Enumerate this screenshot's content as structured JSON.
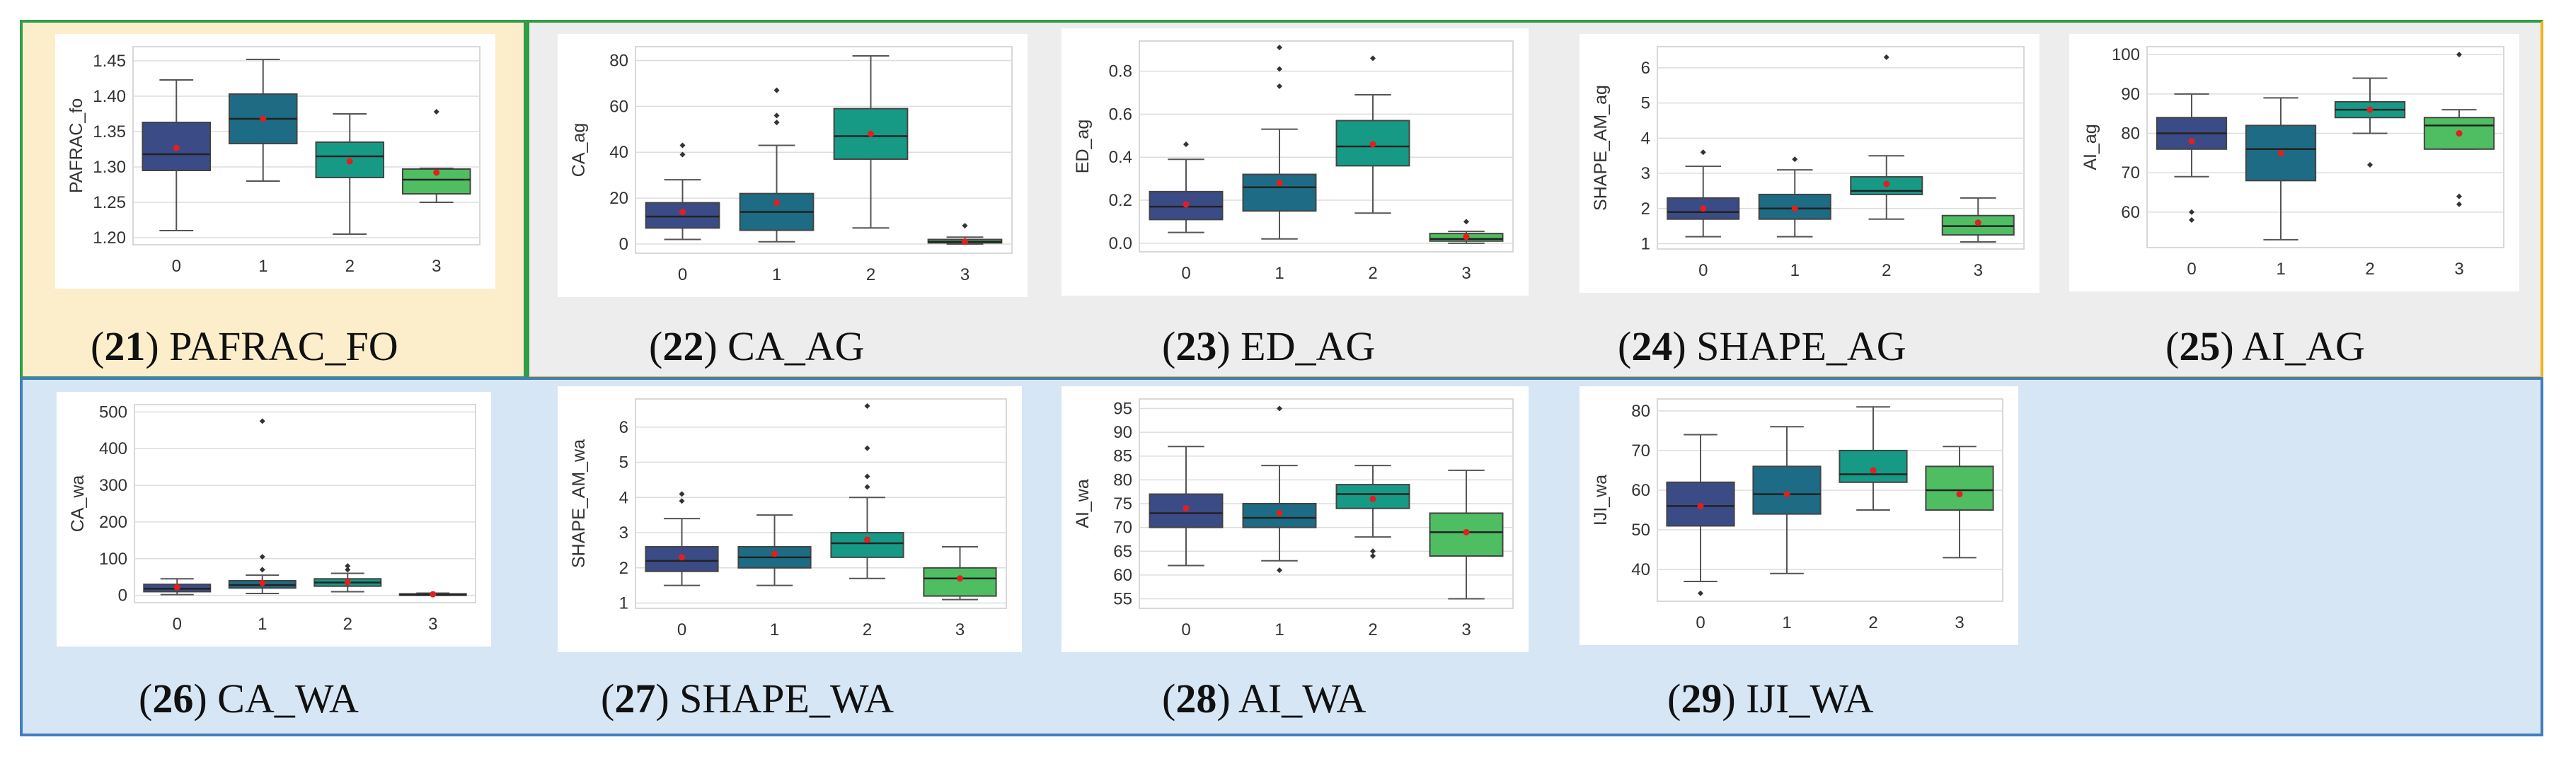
{
  "chart_data": [
    {
      "id": "21",
      "type": "box",
      "caption_num": "21",
      "caption_text": "PAFRAC_FO",
      "ylabel": "PAFRAC_fo",
      "categories": [
        "0",
        "1",
        "2",
        "3"
      ],
      "yticks": [
        1.2,
        1.25,
        1.3,
        1.35,
        1.4,
        1.45
      ],
      "yticklabels": [
        "1.20",
        "1.25",
        "1.30",
        "1.35",
        "1.40",
        "1.45"
      ],
      "ylim": [
        1.19,
        1.47
      ],
      "boxes": [
        {
          "min": 1.21,
          "q1": 1.295,
          "median": 1.318,
          "q3": 1.363,
          "max": 1.423,
          "mean": 1.327,
          "outliers": []
        },
        {
          "min": 1.28,
          "q1": 1.333,
          "median": 1.368,
          "q3": 1.403,
          "max": 1.452,
          "mean": 1.368,
          "outliers": []
        },
        {
          "min": 1.205,
          "q1": 1.285,
          "median": 1.315,
          "q3": 1.335,
          "max": 1.375,
          "mean": 1.308,
          "outliers": []
        },
        {
          "min": 1.25,
          "q1": 1.262,
          "median": 1.282,
          "q3": 1.297,
          "max": 1.298,
          "mean": 1.292,
          "outliers": [
            1.378
          ]
        }
      ]
    },
    {
      "id": "22",
      "type": "box",
      "caption_num": "22",
      "caption_text": "CA_AG",
      "ylabel": "CA_ag",
      "categories": [
        "0",
        "1",
        "2",
        "3"
      ],
      "yticks": [
        0,
        20,
        40,
        60,
        80
      ],
      "yticklabels": [
        "0",
        "20",
        "40",
        "60",
        "80"
      ],
      "ylim": [
        -4,
        86
      ],
      "boxes": [
        {
          "min": 2,
          "q1": 7,
          "median": 12,
          "q3": 18,
          "max": 28,
          "mean": 14,
          "outliers": [
            39,
            43
          ]
        },
        {
          "min": 1,
          "q1": 6,
          "median": 14,
          "q3": 22,
          "max": 43,
          "mean": 18,
          "outliers": [
            53,
            56,
            67
          ]
        },
        {
          "min": 7,
          "q1": 37,
          "median": 47,
          "q3": 59,
          "max": 82,
          "mean": 48,
          "outliers": []
        },
        {
          "min": 0,
          "q1": 0.5,
          "median": 1,
          "q3": 2,
          "max": 3,
          "mean": 1,
          "outliers": [
            8
          ]
        }
      ]
    },
    {
      "id": "23",
      "type": "box",
      "caption_num": "23",
      "caption_text": "ED_AG",
      "ylabel": "ED_ag",
      "categories": [
        "0",
        "1",
        "2",
        "3"
      ],
      "yticks": [
        0.0,
        0.2,
        0.4,
        0.6,
        0.8
      ],
      "yticklabels": [
        "0.0",
        "0.2",
        "0.4",
        "0.6",
        "0.8"
      ],
      "ylim": [
        -0.04,
        0.94
      ],
      "boxes": [
        {
          "min": 0.05,
          "q1": 0.11,
          "median": 0.17,
          "q3": 0.24,
          "max": 0.39,
          "mean": 0.18,
          "outliers": [
            0.46
          ]
        },
        {
          "min": 0.02,
          "q1": 0.15,
          "median": 0.26,
          "q3": 0.32,
          "max": 0.53,
          "mean": 0.28,
          "outliers": [
            0.73,
            0.81,
            0.91
          ]
        },
        {
          "min": 0.14,
          "q1": 0.36,
          "median": 0.45,
          "q3": 0.57,
          "max": 0.69,
          "mean": 0.46,
          "outliers": [
            0.86
          ]
        },
        {
          "min": 0.0,
          "q1": 0.01,
          "median": 0.02,
          "q3": 0.045,
          "max": 0.055,
          "mean": 0.03,
          "outliers": [
            0.1
          ]
        }
      ]
    },
    {
      "id": "24",
      "type": "box",
      "caption_num": "24",
      "caption_text": "SHAPE_AG",
      "ylabel": "SHAPE_AM_ag",
      "categories": [
        "0",
        "1",
        "2",
        "3"
      ],
      "yticks": [
        1,
        2,
        3,
        4,
        5,
        6
      ],
      "yticklabels": [
        "1",
        "2",
        "3",
        "4",
        "5",
        "6"
      ],
      "ylim": [
        0.85,
        6.6
      ],
      "boxes": [
        {
          "min": 1.2,
          "q1": 1.7,
          "median": 1.9,
          "q3": 2.3,
          "max": 3.2,
          "mean": 2.0,
          "outliers": [
            3.6
          ]
        },
        {
          "min": 1.2,
          "q1": 1.7,
          "median": 2.0,
          "q3": 2.4,
          "max": 3.1,
          "mean": 2.0,
          "outliers": [
            3.4
          ]
        },
        {
          "min": 1.7,
          "q1": 2.4,
          "median": 2.5,
          "q3": 2.9,
          "max": 3.5,
          "mean": 2.7,
          "outliers": [
            6.3
          ]
        },
        {
          "min": 1.05,
          "q1": 1.25,
          "median": 1.5,
          "q3": 1.8,
          "max": 2.3,
          "mean": 1.6,
          "outliers": []
        }
      ]
    },
    {
      "id": "25",
      "type": "box",
      "caption_num": "25",
      "caption_text": "AI_AG",
      "ylabel": "AI_ag",
      "categories": [
        "0",
        "1",
        "2",
        "3"
      ],
      "yticks": [
        50,
        60,
        70,
        80,
        90,
        100
      ],
      "yticklabels": [
        "",
        "60",
        "70",
        "80",
        "90",
        "100"
      ],
      "ylim": [
        51,
        102
      ],
      "boxes": [
        {
          "min": 69,
          "q1": 76,
          "median": 80,
          "q3": 84,
          "max": 90,
          "mean": 78,
          "outliers": [
            58,
            60
          ]
        },
        {
          "min": 53,
          "q1": 68,
          "median": 76,
          "q3": 82,
          "max": 89,
          "mean": 75,
          "outliers": []
        },
        {
          "min": 80,
          "q1": 84,
          "median": 86,
          "q3": 88,
          "max": 94,
          "mean": 86,
          "outliers": [
            72
          ]
        },
        {
          "min": 76,
          "q1": 76,
          "median": 82,
          "q3": 84,
          "max": 86,
          "mean": 80,
          "outliers": [
            62,
            64,
            100
          ]
        }
      ]
    },
    {
      "id": "26",
      "type": "box",
      "caption_num": "26",
      "caption_text": "CA_WA",
      "ylabel": "CA_wa",
      "categories": [
        "0",
        "1",
        "2",
        "3"
      ],
      "yticks": [
        0,
        100,
        200,
        300,
        400,
        500
      ],
      "yticklabels": [
        "0",
        "100",
        "200",
        "300",
        "400",
        "500"
      ],
      "ylim": [
        -20,
        520
      ],
      "boxes": [
        {
          "min": 2,
          "q1": 10,
          "median": 18,
          "q3": 30,
          "max": 45,
          "mean": 22,
          "outliers": []
        },
        {
          "min": 5,
          "q1": 20,
          "median": 28,
          "q3": 40,
          "max": 55,
          "mean": 34,
          "outliers": [
            70,
            105,
            475
          ]
        },
        {
          "min": 10,
          "q1": 25,
          "median": 35,
          "q3": 45,
          "max": 60,
          "mean": 36,
          "outliers": [
            70,
            80
          ]
        },
        {
          "min": 0,
          "q1": 1,
          "median": 2,
          "q3": 4,
          "max": 6,
          "mean": 3,
          "outliers": []
        }
      ]
    },
    {
      "id": "27",
      "type": "box",
      "caption_num": "27",
      "caption_text": "SHAPE_WA",
      "ylabel": "SHAPE_AM_wa",
      "categories": [
        "0",
        "1",
        "2",
        "3"
      ],
      "yticks": [
        1,
        2,
        3,
        4,
        5,
        6
      ],
      "yticklabels": [
        "1",
        "2",
        "3",
        "4",
        "5",
        "6"
      ],
      "ylim": [
        0.85,
        6.8
      ],
      "boxes": [
        {
          "min": 1.5,
          "q1": 1.9,
          "median": 2.2,
          "q3": 2.6,
          "max": 3.4,
          "mean": 2.3,
          "outliers": [
            3.9,
            4.1
          ]
        },
        {
          "min": 1.5,
          "q1": 2.0,
          "median": 2.3,
          "q3": 2.6,
          "max": 3.5,
          "mean": 2.4,
          "outliers": []
        },
        {
          "min": 1.7,
          "q1": 2.3,
          "median": 2.7,
          "q3": 3.0,
          "max": 4.0,
          "mean": 2.8,
          "outliers": [
            4.3,
            4.6,
            5.4,
            6.6
          ]
        },
        {
          "min": 1.1,
          "q1": 1.2,
          "median": 1.7,
          "q3": 2.0,
          "max": 2.6,
          "mean": 1.7,
          "outliers": []
        }
      ]
    },
    {
      "id": "28",
      "type": "box",
      "caption_num": "28",
      "caption_text": "AI_WA",
      "ylabel": "AI_wa",
      "categories": [
        "0",
        "1",
        "2",
        "3"
      ],
      "yticks": [
        55,
        60,
        65,
        70,
        75,
        80,
        85,
        90,
        95
      ],
      "yticklabels": [
        "55",
        "60",
        "65",
        "70",
        "75",
        "80",
        "85",
        "90",
        "95"
      ],
      "ylim": [
        53,
        97
      ],
      "boxes": [
        {
          "min": 62,
          "q1": 70,
          "median": 73,
          "q3": 77,
          "max": 87,
          "mean": 74,
          "outliers": []
        },
        {
          "min": 63,
          "q1": 70,
          "median": 72,
          "q3": 75,
          "max": 83,
          "mean": 73,
          "outliers": [
            61,
            95
          ]
        },
        {
          "min": 68,
          "q1": 74,
          "median": 77,
          "q3": 79,
          "max": 83,
          "mean": 76,
          "outliers": [
            64,
            65
          ]
        },
        {
          "min": 55,
          "q1": 64,
          "median": 69,
          "q3": 73,
          "max": 82,
          "mean": 69,
          "outliers": []
        }
      ]
    },
    {
      "id": "29",
      "type": "box",
      "caption_num": "29",
      "caption_text": "IJI_WA",
      "ylabel": "IJI_wa",
      "categories": [
        "0",
        "1",
        "2",
        "3"
      ],
      "yticks": [
        40,
        50,
        60,
        70,
        80
      ],
      "yticklabels": [
        "40",
        "50",
        "60",
        "70",
        "80"
      ],
      "ylim": [
        32,
        83
      ],
      "boxes": [
        {
          "min": 37,
          "q1": 51,
          "median": 56,
          "q3": 62,
          "max": 74,
          "mean": 56,
          "outliers": [
            34
          ]
        },
        {
          "min": 39,
          "q1": 54,
          "median": 59,
          "q3": 66,
          "max": 76,
          "mean": 59,
          "outliers": []
        },
        {
          "min": 55,
          "q1": 62,
          "median": 64,
          "q3": 70,
          "max": 81,
          "mean": 65,
          "outliers": []
        },
        {
          "min": 43,
          "q1": 55,
          "median": 60,
          "q3": 66,
          "max": 71,
          "mean": 59,
          "outliers": []
        }
      ]
    }
  ],
  "colors": {
    "cat0": "#3b4b86",
    "cat1": "#1d6b84",
    "cat2": "#169a85",
    "cat3": "#4fbd62",
    "mean": "#e02020",
    "outlier": "#333333",
    "grid": "#dddddd"
  }
}
